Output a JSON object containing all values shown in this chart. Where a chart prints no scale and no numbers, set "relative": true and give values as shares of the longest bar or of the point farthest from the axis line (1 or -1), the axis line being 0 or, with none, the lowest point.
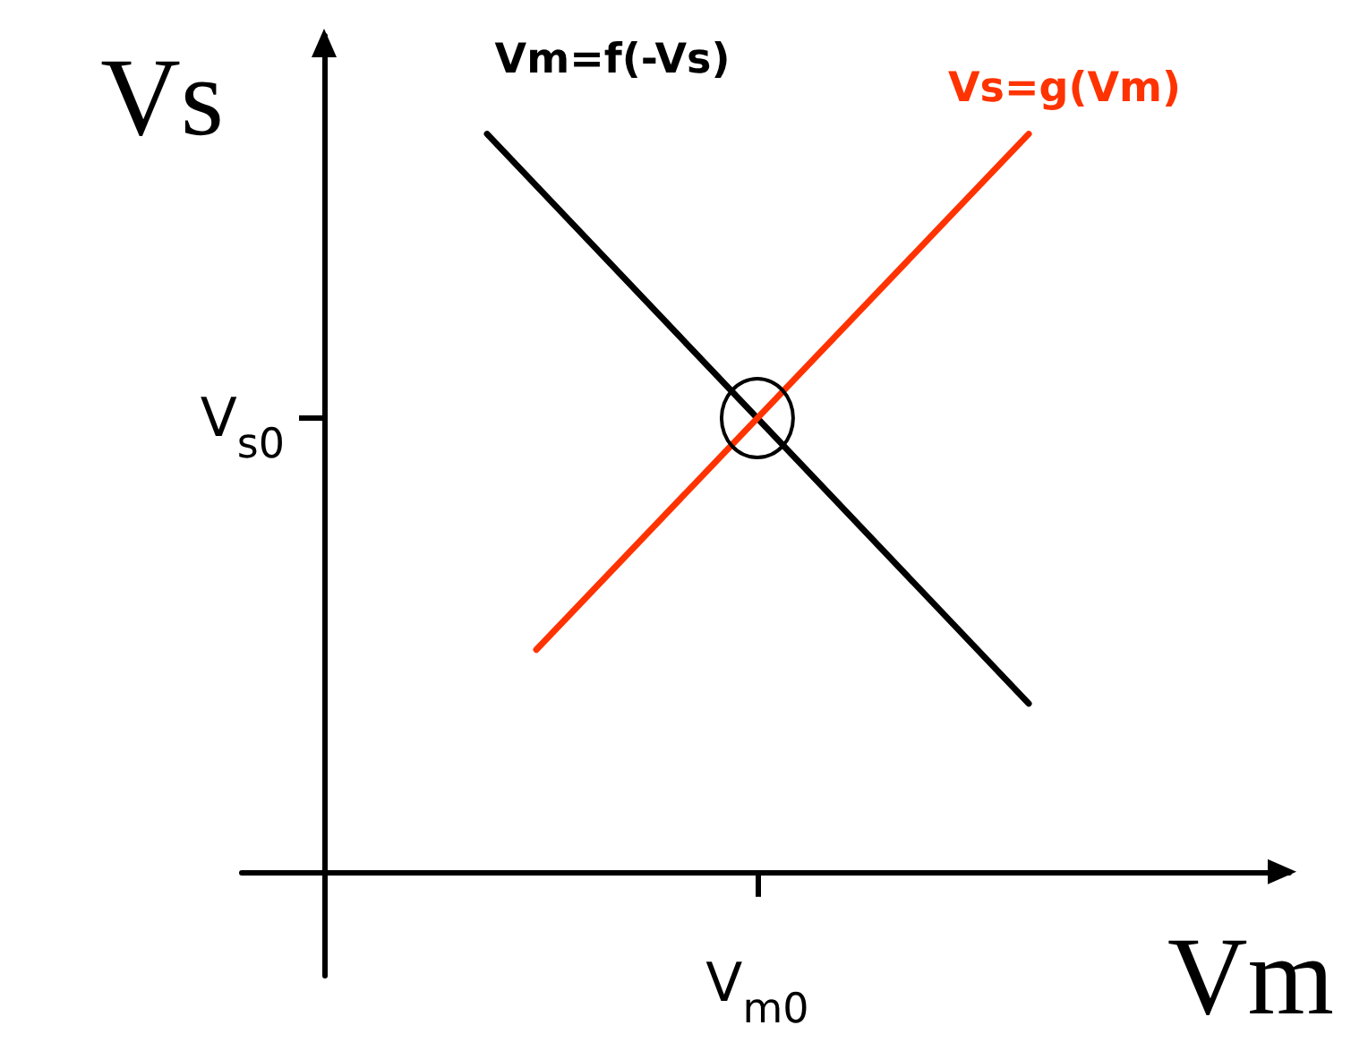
{
  "chart_data": {
    "type": "line",
    "xlabel": "Vm",
    "ylabel": "Vs",
    "relative": true,
    "categories": [
      null,
      null,
      null,
      null,
      null,
      null,
      null,
      null,
      null,
      null,
      null,
      null
    ],
    "series": [
      {
        "name": "Vm=f(-Vs)",
        "color": "#000000",
        "values": [
          1,
          null,
          null,
          null,
          null,
          null,
          null,
          null,
          null,
          null,
          null,
          0.228
        ]
      },
      {
        "name": "Vs=g(Vm)",
        "color": "#ff3300",
        "values": [
          null,
          0.301,
          null,
          null,
          null,
          null,
          null,
          null,
          null,
          null,
          null,
          1
        ]
      }
    ],
    "annotations": [
      "V$_{m0}$",
      "V$_{s0}$"
    ],
    "legend": false,
    "marker": "none",
    "line_style": "solid"
  }
}
